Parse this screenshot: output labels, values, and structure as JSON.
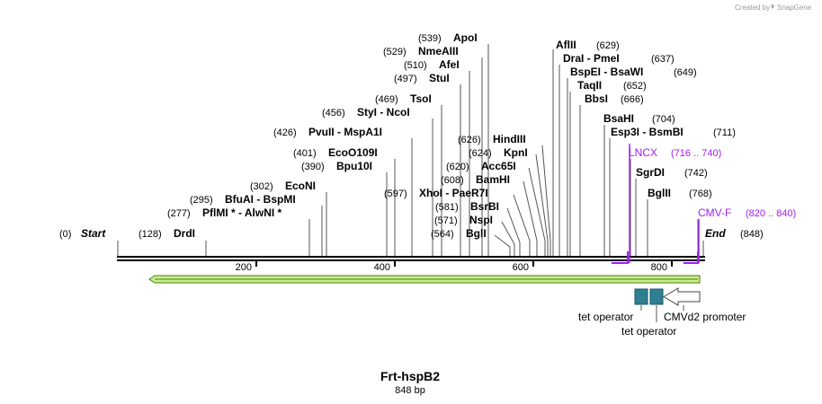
{
  "credit": {
    "text": "Created by",
    "brand": "SnapGene"
  },
  "map": {
    "name": "Frt-hspB2",
    "length_label": "848 bp",
    "length": 848
  },
  "ruler": [
    {
      "label": "200",
      "bp": 200
    },
    {
      "label": "400",
      "bp": 400
    },
    {
      "label": "600",
      "bp": 600
    },
    {
      "label": "800",
      "bp": 800
    }
  ],
  "sites": [
    {
      "pos": "(0)",
      "name": "Start",
      "bp": 0,
      "italic": true
    },
    {
      "pos": "(128)",
      "name": "DrdI",
      "bp": 128
    },
    {
      "pos": "(277)",
      "name": "PflMI * - AlwNI *",
      "bp": 277
    },
    {
      "pos": "(295)",
      "name": "BfuAI - BspMI",
      "bp": 295
    },
    {
      "pos": "(302)",
      "name": "EcoNI",
      "bp": 302
    },
    {
      "pos": "(390)",
      "name": "Bpu10I",
      "bp": 390
    },
    {
      "pos": "(401)",
      "name": "EcoO109I",
      "bp": 401
    },
    {
      "pos": "(426)",
      "name": "PvuII - MspA1I",
      "bp": 426
    },
    {
      "pos": "(456)",
      "name": "StyI - NcoI",
      "bp": 456
    },
    {
      "pos": "(469)",
      "name": "TsoI",
      "bp": 469
    },
    {
      "pos": "(497)",
      "name": "StuI",
      "bp": 497
    },
    {
      "pos": "(510)",
      "name": "AfeI",
      "bp": 510
    },
    {
      "pos": "(529)",
      "name": "NmeAIII",
      "bp": 529
    },
    {
      "pos": "(539)",
      "name": "ApoI",
      "bp": 539
    },
    {
      "pos": "(597)",
      "name": "XhoI - PaeR7I",
      "bp": 597
    },
    {
      "pos": "(581)",
      "name": "BsrBI",
      "bp": 581
    },
    {
      "pos": "(571)",
      "name": "NspI",
      "bp": 571
    },
    {
      "pos": "(564)",
      "name": "BglI",
      "bp": 564
    },
    {
      "pos": "(608)",
      "name": "BamHI",
      "bp": 608
    },
    {
      "pos": "(620)",
      "name": "Acc65I",
      "bp": 620
    },
    {
      "pos": "(624)",
      "name": "KpnI",
      "bp": 624
    },
    {
      "pos": "(626)",
      "name": "HindIII",
      "bp": 626
    },
    {
      "pos": "(629)",
      "name": "AflII",
      "bp": 629
    },
    {
      "pos": "(637)",
      "name": "DraI - PmeI",
      "bp": 637
    },
    {
      "pos": "(649)",
      "name": "BspEI - BsaWI",
      "bp": 649
    },
    {
      "pos": "(652)",
      "name": "TaqII",
      "bp": 652
    },
    {
      "pos": "(666)",
      "name": "BbsI",
      "bp": 666
    },
    {
      "pos": "(704)",
      "name": "BsaHI",
      "bp": 704
    },
    {
      "pos": "(711)",
      "name": "Esp3I - BsmBI",
      "bp": 711
    },
    {
      "pos": "(742)",
      "name": "SgrDI",
      "bp": 742
    },
    {
      "pos": "(768)",
      "name": "BglII",
      "bp": 768
    },
    {
      "pos": "(848)",
      "name": "End",
      "bp": 848,
      "italic": true
    }
  ],
  "primers": [
    {
      "name": "LNCX",
      "range": "(716 .. 740)"
    },
    {
      "name": "CMV-F",
      "range": "(820 .. 840)"
    }
  ],
  "features": [
    {
      "label": "tet operator"
    },
    {
      "label": "tet operator"
    },
    {
      "label": "CMVd2 promoter"
    }
  ],
  "colors": {
    "primer": "#a020f0",
    "operator": "#2f7f92",
    "cds_fill": "#c7f08a",
    "cds_stroke": "#4a7a18"
  }
}
